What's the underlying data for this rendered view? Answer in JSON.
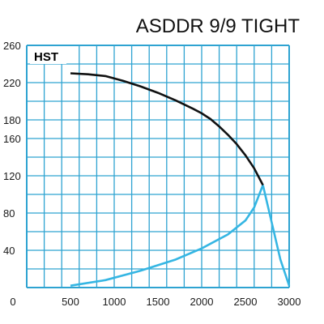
{
  "chart_data": {
    "type": "line",
    "title": "ASDDR 9/9 TIGHT",
    "annotation": "HST",
    "xlabel": "",
    "ylabel": "",
    "xlim": [
      0,
      3000
    ],
    "ylim": [
      0,
      260
    ],
    "x_ticks": [
      "0",
      "500",
      "1000",
      "1500",
      "2000",
      "2500",
      "3000"
    ],
    "y_ticks": [
      "260",
      "220",
      "180",
      "160",
      "120",
      "80",
      "40"
    ],
    "grid": true,
    "colors": {
      "grid": "#2ea3d1",
      "curve": "#111111",
      "envelope": "#35b6e3"
    },
    "series": [
      {
        "values_x": [
          500,
          700,
          900,
          1100,
          1300,
          1500,
          1700,
          1900,
          2000,
          2100,
          2200,
          2300,
          2400,
          2500,
          2600,
          2650,
          2700
        ],
        "values_y": [
          230,
          229,
          227,
          222,
          216,
          209,
          201,
          192,
          187,
          181,
          173,
          164,
          154,
          142,
          128,
          119,
          110
        ]
      },
      {
        "values_x": [
          500,
          900,
          1300,
          1700,
          2000,
          2300,
          2500,
          2600,
          2700
        ],
        "values_y": [
          2,
          8,
          18,
          30,
          42,
          57,
          72,
          86,
          110
        ]
      },
      {
        "values_x": [
          2700,
          2800,
          2900,
          3000
        ],
        "values_y": [
          110,
          70,
          30,
          2
        ]
      }
    ]
  }
}
